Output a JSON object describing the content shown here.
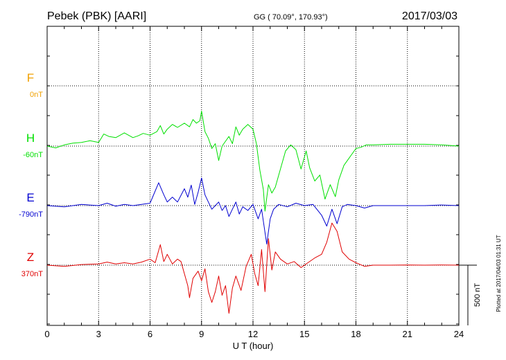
{
  "header": {
    "station": "Pebek (PBK)  [AARI]",
    "coords": "GG ( 70.09°, 170.93°)",
    "date": "2017/03/03"
  },
  "plotted_note": "Plotted at 2017/04/03 01:31  UT",
  "colors": {
    "F": "#f0a000",
    "H": "#00e000",
    "E": "#0000d0",
    "Z": "#e00000"
  },
  "chart_data": {
    "type": "line",
    "xlabel": "U T (hour)",
    "xlim": [
      0,
      24
    ],
    "xticks": [
      0,
      3,
      6,
      9,
      12,
      15,
      18,
      21,
      24
    ],
    "grid": true,
    "scale_bar": "500 nT",
    "series": [
      {
        "name": "F",
        "baseline_label": "0nT",
        "points": []
      },
      {
        "name": "H",
        "baseline_label": "-60nT",
        "points": [
          [
            0.0,
            -60
          ],
          [
            0.5,
            -75
          ],
          [
            1.0,
            -50
          ],
          [
            1.5,
            -35
          ],
          [
            2.0,
            -30
          ],
          [
            2.5,
            -15
          ],
          [
            3.0,
            -30
          ],
          [
            3.3,
            40
          ],
          [
            3.6,
            20
          ],
          [
            4.0,
            10
          ],
          [
            4.5,
            50
          ],
          [
            5.0,
            10
          ],
          [
            5.3,
            25
          ],
          [
            5.6,
            45
          ],
          [
            6.0,
            30
          ],
          [
            6.4,
            60
          ],
          [
            6.6,
            110
          ],
          [
            6.8,
            40
          ],
          [
            7.0,
            80
          ],
          [
            7.3,
            120
          ],
          [
            7.6,
            95
          ],
          [
            8.0,
            130
          ],
          [
            8.3,
            100
          ],
          [
            8.5,
            160
          ],
          [
            8.7,
            130
          ],
          [
            8.9,
            150
          ],
          [
            9.0,
            230
          ],
          [
            9.2,
            60
          ],
          [
            9.4,
            5
          ],
          [
            9.6,
            -80
          ],
          [
            9.8,
            -40
          ],
          [
            10.0,
            -180
          ],
          [
            10.2,
            -60
          ],
          [
            10.4,
            -20
          ],
          [
            10.6,
            20
          ],
          [
            10.8,
            -40
          ],
          [
            11.0,
            100
          ],
          [
            11.2,
            30
          ],
          [
            11.4,
            80
          ],
          [
            11.7,
            120
          ],
          [
            12.0,
            80
          ],
          [
            12.2,
            -40
          ],
          [
            12.4,
            -260
          ],
          [
            12.6,
            -420
          ],
          [
            12.7,
            -600
          ],
          [
            12.9,
            -380
          ],
          [
            13.1,
            -450
          ],
          [
            13.3,
            -400
          ],
          [
            13.6,
            -250
          ],
          [
            13.9,
            -100
          ],
          [
            14.2,
            -50
          ],
          [
            14.5,
            -90
          ],
          [
            14.8,
            -250
          ],
          [
            15.1,
            -100
          ],
          [
            15.3,
            -240
          ],
          [
            15.6,
            -350
          ],
          [
            15.9,
            -300
          ],
          [
            16.2,
            -500
          ],
          [
            16.5,
            -380
          ],
          [
            16.8,
            -480
          ],
          [
            17.0,
            -340
          ],
          [
            17.3,
            -220
          ],
          [
            17.6,
            -160
          ],
          [
            18.0,
            -80
          ],
          [
            18.3,
            -70
          ],
          [
            18.6,
            -50
          ],
          [
            19.0,
            -50
          ],
          [
            20.0,
            -45
          ],
          [
            21.0,
            -45
          ],
          [
            22.0,
            -45
          ],
          [
            23.0,
            -50
          ],
          [
            24.0,
            -60
          ]
        ]
      },
      {
        "name": "E",
        "baseline_label": "-790nT",
        "points": [
          [
            0.0,
            -790
          ],
          [
            1.0,
            -800
          ],
          [
            2.0,
            -780
          ],
          [
            3.0,
            -790
          ],
          [
            3.5,
            -770
          ],
          [
            4.0,
            -795
          ],
          [
            4.5,
            -780
          ],
          [
            5.0,
            -790
          ],
          [
            5.5,
            -780
          ],
          [
            6.0,
            -770
          ],
          [
            6.5,
            -600
          ],
          [
            6.8,
            -700
          ],
          [
            7.0,
            -760
          ],
          [
            7.3,
            -720
          ],
          [
            7.6,
            -760
          ],
          [
            8.0,
            -650
          ],
          [
            8.2,
            -720
          ],
          [
            8.4,
            -620
          ],
          [
            8.6,
            -780
          ],
          [
            8.8,
            -680
          ],
          [
            9.0,
            -560
          ],
          [
            9.2,
            -700
          ],
          [
            9.4,
            -760
          ],
          [
            9.6,
            -820
          ],
          [
            9.8,
            -790
          ],
          [
            10.0,
            -760
          ],
          [
            10.2,
            -830
          ],
          [
            10.4,
            -790
          ],
          [
            10.6,
            -880
          ],
          [
            10.8,
            -820
          ],
          [
            11.0,
            -760
          ],
          [
            11.2,
            -860
          ],
          [
            11.4,
            -800
          ],
          [
            11.7,
            -830
          ],
          [
            12.0,
            -780
          ],
          [
            12.3,
            -900
          ],
          [
            12.5,
            -820
          ],
          [
            12.8,
            -1110
          ],
          [
            13.0,
            -900
          ],
          [
            13.2,
            -820
          ],
          [
            13.5,
            -780
          ],
          [
            14.0,
            -800
          ],
          [
            14.5,
            -770
          ],
          [
            15.0,
            -790
          ],
          [
            15.5,
            -780
          ],
          [
            16.0,
            -870
          ],
          [
            16.3,
            -960
          ],
          [
            16.6,
            -820
          ],
          [
            16.9,
            -940
          ],
          [
            17.2,
            -800
          ],
          [
            17.5,
            -780
          ],
          [
            18.0,
            -790
          ],
          [
            18.5,
            -810
          ],
          [
            19.0,
            -790
          ],
          [
            20.0,
            -790
          ],
          [
            21.0,
            -790
          ],
          [
            22.0,
            -790
          ],
          [
            23.0,
            -785
          ],
          [
            24.0,
            -790
          ]
        ]
      },
      {
        "name": "Z",
        "baseline_label": "370nT",
        "points": [
          [
            0.0,
            370
          ],
          [
            1.0,
            360
          ],
          [
            2.0,
            375
          ],
          [
            3.0,
            380
          ],
          [
            3.5,
            395
          ],
          [
            4.0,
            380
          ],
          [
            4.5,
            390
          ],
          [
            5.0,
            380
          ],
          [
            5.5,
            395
          ],
          [
            6.0,
            420
          ],
          [
            6.3,
            390
          ],
          [
            6.6,
            540
          ],
          [
            6.8,
            400
          ],
          [
            7.0,
            460
          ],
          [
            7.3,
            380
          ],
          [
            7.6,
            420
          ],
          [
            7.8,
            400
          ],
          [
            8.0,
            300
          ],
          [
            8.2,
            200
          ],
          [
            8.3,
            100
          ],
          [
            8.5,
            260
          ],
          [
            8.8,
            320
          ],
          [
            9.0,
            240
          ],
          [
            9.2,
            340
          ],
          [
            9.4,
            150
          ],
          [
            9.6,
            60
          ],
          [
            9.8,
            150
          ],
          [
            10.0,
            280
          ],
          [
            10.2,
            120
          ],
          [
            10.4,
            200
          ],
          [
            10.6,
            -30
          ],
          [
            10.8,
            180
          ],
          [
            11.0,
            280
          ],
          [
            11.3,
            160
          ],
          [
            11.6,
            360
          ],
          [
            11.9,
            460
          ],
          [
            12.1,
            300
          ],
          [
            12.3,
            200
          ],
          [
            12.5,
            500
          ],
          [
            12.7,
            150
          ],
          [
            12.9,
            590
          ],
          [
            13.1,
            330
          ],
          [
            13.3,
            480
          ],
          [
            13.6,
            420
          ],
          [
            14.0,
            380
          ],
          [
            14.4,
            400
          ],
          [
            14.8,
            350
          ],
          [
            15.2,
            390
          ],
          [
            15.6,
            430
          ],
          [
            16.0,
            460
          ],
          [
            16.3,
            560
          ],
          [
            16.6,
            720
          ],
          [
            16.9,
            650
          ],
          [
            17.2,
            480
          ],
          [
            17.6,
            420
          ],
          [
            18.0,
            390
          ],
          [
            18.5,
            360
          ],
          [
            19.0,
            370
          ],
          [
            20.0,
            370
          ],
          [
            21.0,
            372
          ],
          [
            22.0,
            370
          ],
          [
            23.0,
            372
          ],
          [
            24.0,
            370
          ]
        ]
      }
    ]
  }
}
